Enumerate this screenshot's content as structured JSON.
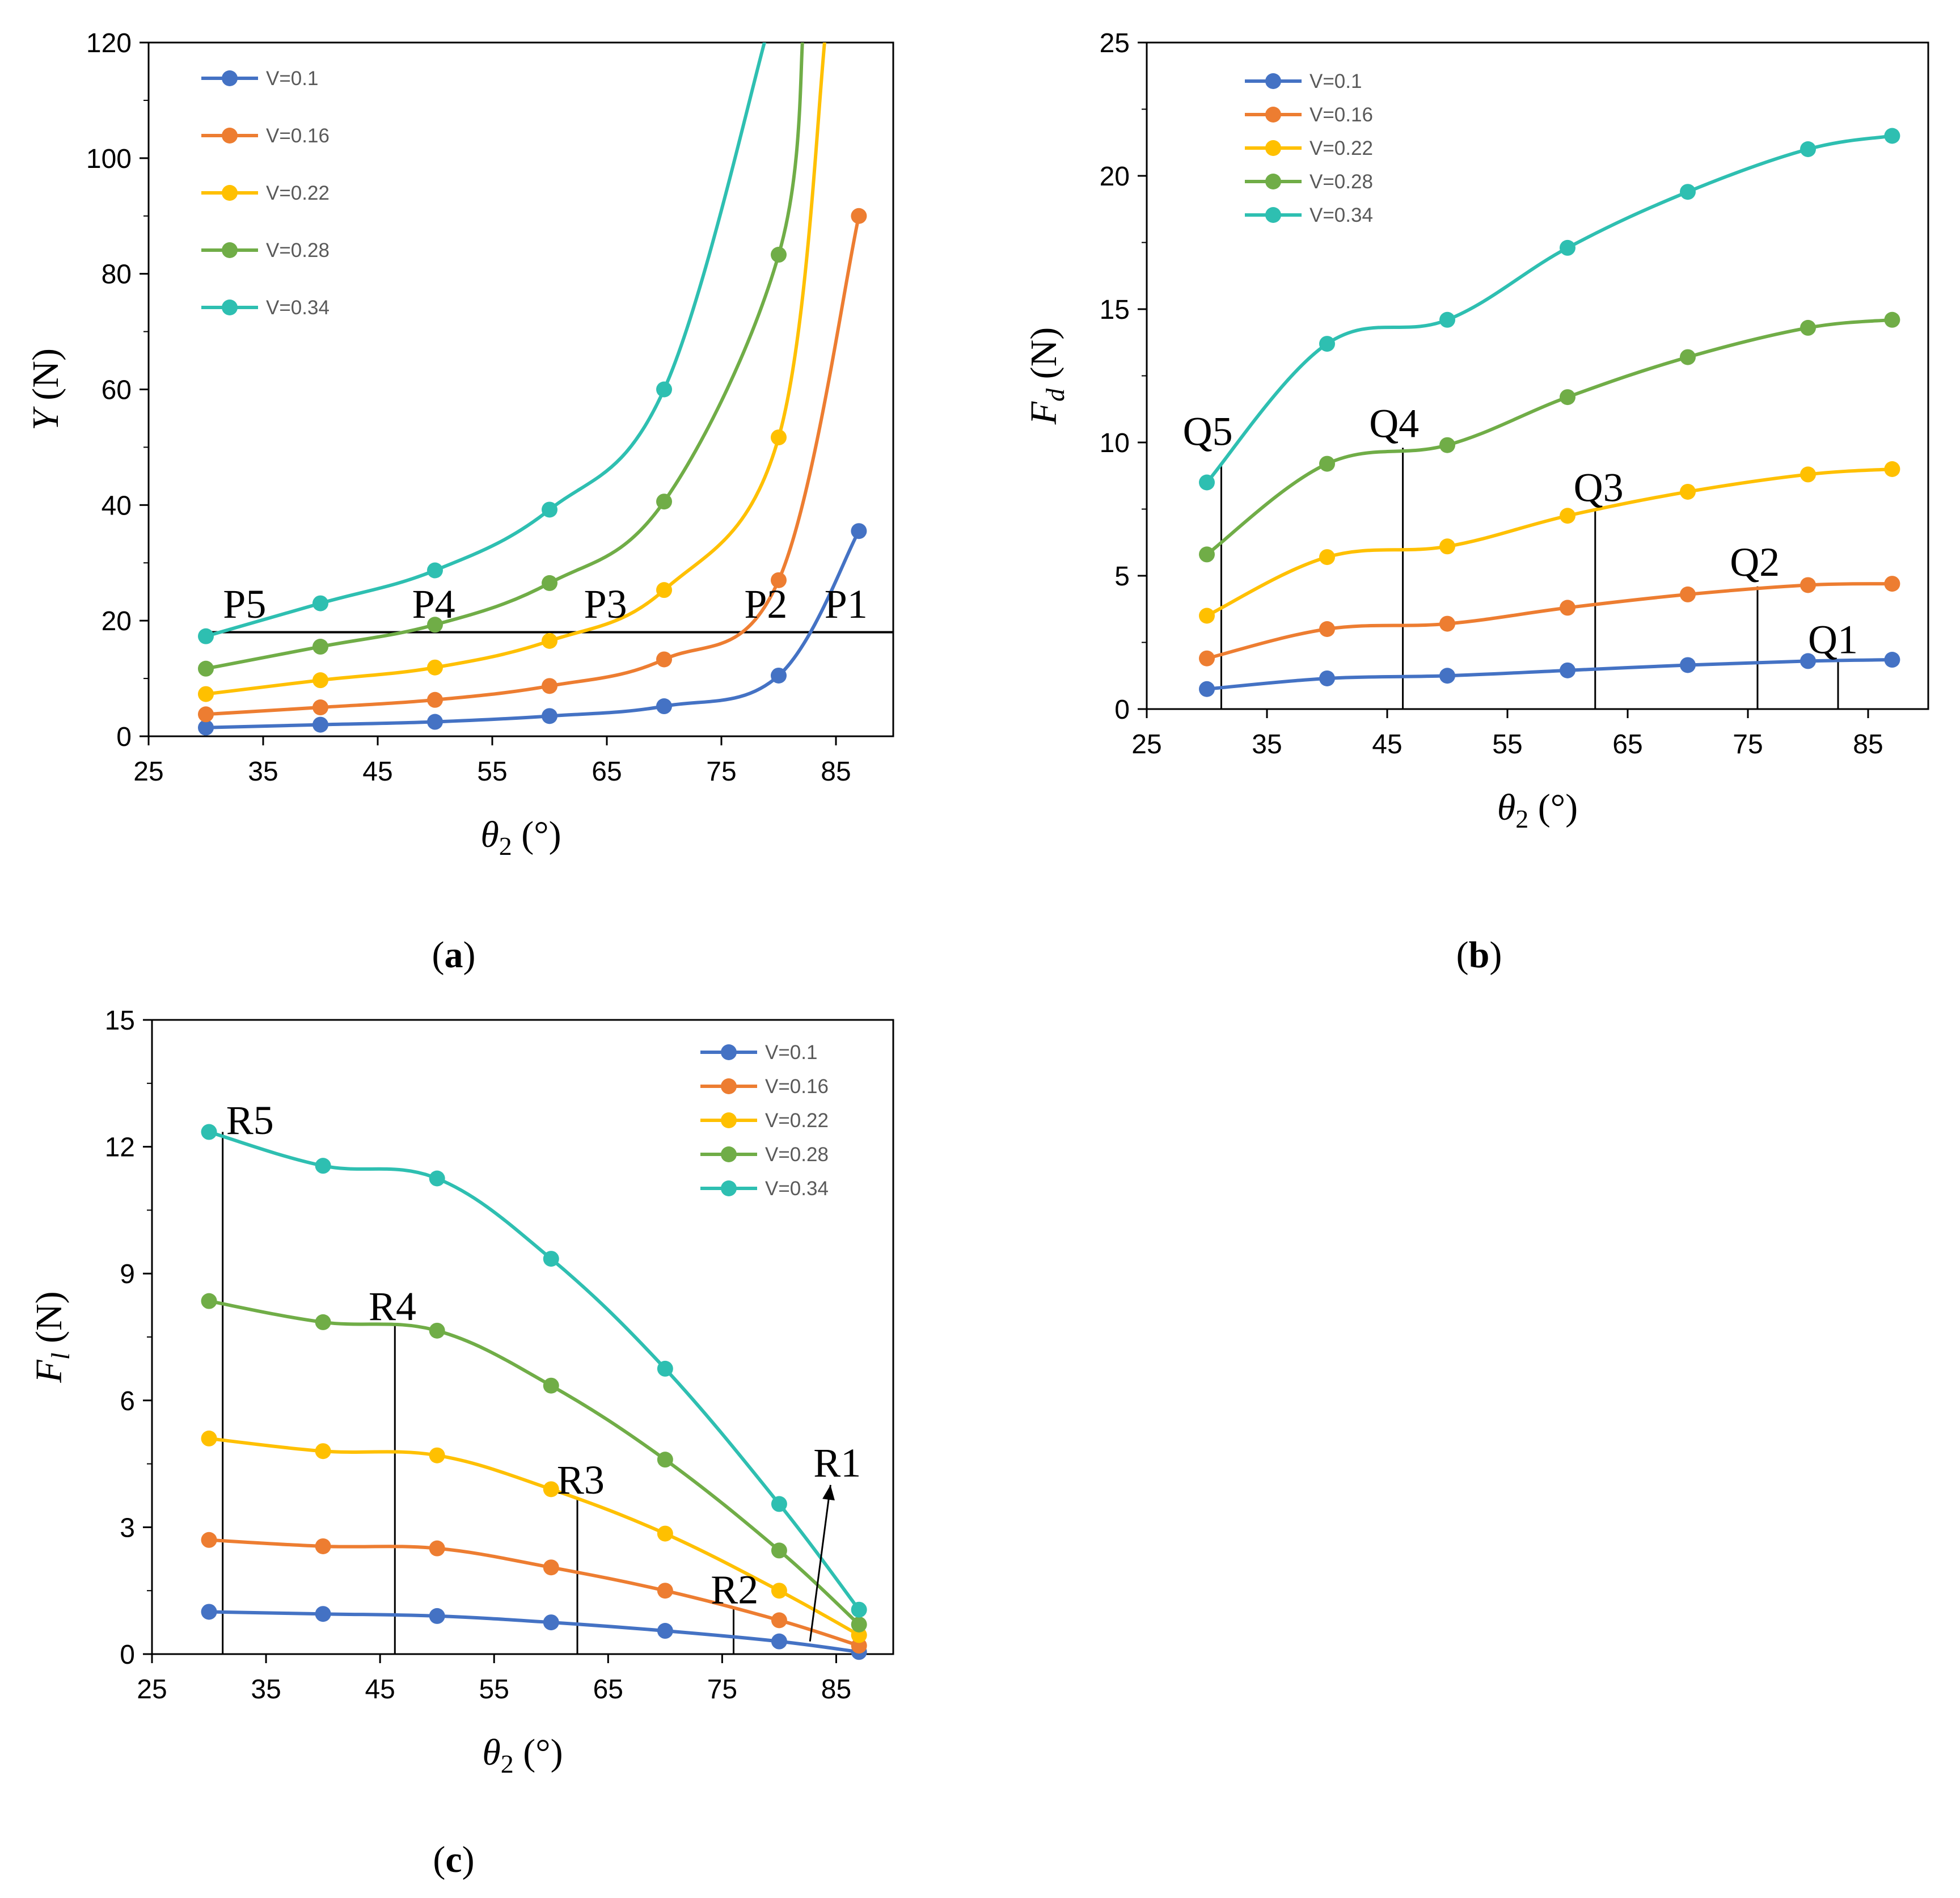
{
  "figure": {
    "panel_labels": {
      "a": {
        "open": "(",
        "letter": "a",
        "close": ")"
      },
      "b": {
        "open": "(",
        "letter": "b",
        "close": ")"
      },
      "c": {
        "open": "(",
        "letter": "c",
        "close": ")"
      }
    }
  },
  "colors": {
    "V=0.1": "#4472C4",
    "V=0.16": "#ED7D31",
    "V=0.22": "#FFC000",
    "V=0.28": "#70AD47",
    "V=0.34": "#2EBFB1"
  },
  "chart_data": [
    {
      "id": "a",
      "type": "line",
      "xlabel": {
        "symbol": "θ",
        "sub": "2",
        "unit": " (°)"
      },
      "ylabel": {
        "symbol": "Y",
        "sub": "",
        "unit": " (N)"
      },
      "xlim": [
        25,
        90
      ],
      "ylim": [
        0,
        120
      ],
      "xticks": [
        25,
        35,
        45,
        55,
        65,
        75,
        85
      ],
      "yticks": [
        0,
        20,
        40,
        60,
        80,
        100,
        120
      ],
      "x": [
        30,
        40,
        50,
        60,
        70,
        80,
        87
      ],
      "series": [
        {
          "name": "V=0.1",
          "values": [
            1.5,
            2.0,
            2.5,
            3.5,
            5.2,
            10.5,
            35.5
          ]
        },
        {
          "name": "V=0.16",
          "values": [
            3.8,
            5.0,
            6.3,
            8.7,
            13.3,
            27.0,
            90.0
          ]
        },
        {
          "name": "V=0.22",
          "values": [
            7.3,
            9.7,
            11.9,
            16.5,
            25.3,
            51.7,
            null
          ]
        },
        {
          "name": "V=0.28",
          "values": [
            11.7,
            15.5,
            19.3,
            26.5,
            40.6,
            83.3,
            null
          ]
        },
        {
          "name": "V=0.34",
          "values": [
            17.3,
            23.0,
            28.7,
            39.2,
            60.0,
            null,
            null
          ]
        }
      ],
      "legend_position": "top-left",
      "reference_line": {
        "y": 18,
        "x_from": 30,
        "x_to": 90
      },
      "annotations": [
        {
          "text": "P5",
          "x": 31.5,
          "y": 20.5
        },
        {
          "text": "P4",
          "x": 48,
          "y": 20.5
        },
        {
          "text": "P3",
          "x": 63,
          "y": 20.5
        },
        {
          "text": "P2",
          "x": 77,
          "y": 20.5
        },
        {
          "text": "P1",
          "x": 84,
          "y": 20.5
        }
      ]
    },
    {
      "id": "b",
      "type": "line",
      "xlabel": {
        "symbol": "θ",
        "sub": "2",
        "unit": " (°)"
      },
      "ylabel": {
        "symbol": "F",
        "sub": "d",
        "unit": " (N)"
      },
      "xlim": [
        25,
        90
      ],
      "ylim": [
        0,
        25
      ],
      "xticks": [
        25,
        35,
        45,
        55,
        65,
        75,
        85
      ],
      "yticks": [
        0,
        5,
        10,
        15,
        20,
        25
      ],
      "x": [
        30,
        40,
        50,
        60,
        70,
        80,
        87
      ],
      "series": [
        {
          "name": "V=0.1",
          "values": [
            0.75,
            1.15,
            1.25,
            1.45,
            1.65,
            1.8,
            1.85
          ]
        },
        {
          "name": "V=0.16",
          "values": [
            1.9,
            3.0,
            3.2,
            3.8,
            4.3,
            4.65,
            4.7
          ]
        },
        {
          "name": "V=0.22",
          "values": [
            3.5,
            5.7,
            6.1,
            7.25,
            8.15,
            8.8,
            9.0
          ]
        },
        {
          "name": "V=0.28",
          "values": [
            5.8,
            9.2,
            9.9,
            11.7,
            13.2,
            14.3,
            14.6
          ]
        },
        {
          "name": "V=0.34",
          "values": [
            8.5,
            13.7,
            14.6,
            17.3,
            19.4,
            21.0,
            21.5
          ]
        }
      ],
      "legend_position": "top-left",
      "markers": [
        {
          "x": 31.2,
          "y": 9.2
        },
        {
          "x": 46.3,
          "y": 9.8
        },
        {
          "x": 62.3,
          "y": 7.5
        },
        {
          "x": 75.8,
          "y": 4.6
        },
        {
          "x": 82.5,
          "y": 1.85
        }
      ],
      "annotations": [
        {
          "text": "Q5",
          "x": 28,
          "y": 9.9
        },
        {
          "text": "Q4",
          "x": 43.5,
          "y": 10.2
        },
        {
          "text": "Q3",
          "x": 60.5,
          "y": 7.8
        },
        {
          "text": "Q2",
          "x": 73.5,
          "y": 5.0
        },
        {
          "text": "Q1",
          "x": 80,
          "y": 2.1
        }
      ]
    },
    {
      "id": "c",
      "type": "line",
      "xlabel": {
        "symbol": "θ",
        "sub": "2",
        "unit": " (°)"
      },
      "ylabel": {
        "symbol": "F",
        "sub": "l",
        "unit": " (N)"
      },
      "xlim": [
        25,
        90
      ],
      "ylim": [
        0,
        15
      ],
      "xticks": [
        25,
        35,
        45,
        55,
        65,
        75,
        85
      ],
      "yticks": [
        0,
        3,
        6,
        9,
        12,
        15
      ],
      "x": [
        30,
        40,
        50,
        60,
        70,
        80,
        87
      ],
      "series": [
        {
          "name": "V=0.1",
          "values": [
            1.0,
            0.95,
            0.9,
            0.75,
            0.55,
            0.3,
            0.05
          ]
        },
        {
          "name": "V=0.16",
          "values": [
            2.7,
            2.55,
            2.5,
            2.05,
            1.5,
            0.8,
            0.2
          ]
        },
        {
          "name": "V=0.22",
          "values": [
            5.1,
            4.8,
            4.7,
            3.9,
            2.85,
            1.5,
            0.45
          ]
        },
        {
          "name": "V=0.28",
          "values": [
            8.35,
            7.85,
            7.65,
            6.35,
            4.6,
            2.45,
            0.7
          ]
        },
        {
          "name": "V=0.34",
          "values": [
            12.35,
            11.55,
            11.25,
            9.35,
            6.75,
            3.55,
            1.05
          ]
        }
      ],
      "legend_position": "top-right",
      "markers": [
        {
          "x": 31.2,
          "y": 12.35
        },
        {
          "x": 46.3,
          "y": 7.8
        },
        {
          "x": 62.3,
          "y": 3.7
        },
        {
          "x": 76.0,
          "y": 1.1
        }
      ],
      "arrow": {
        "from": [
          82.7,
          0.3
        ],
        "to": [
          84.5,
          4.0
        ]
      },
      "annotations": [
        {
          "text": "R5",
          "x": 31.5,
          "y": 12.3
        },
        {
          "text": "R4",
          "x": 44,
          "y": 7.9
        },
        {
          "text": "R3",
          "x": 60.5,
          "y": 3.8
        },
        {
          "text": "R2",
          "x": 74,
          "y": 1.2
        },
        {
          "text": "R1",
          "x": 83,
          "y": 4.2
        }
      ]
    }
  ]
}
